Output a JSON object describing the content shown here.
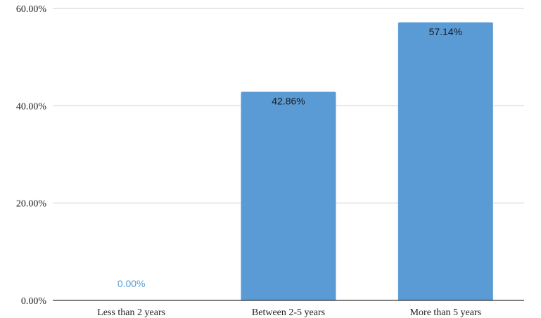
{
  "chart_data": {
    "type": "bar",
    "title": "",
    "xlabel": "",
    "ylabel": "",
    "categories": [
      "Less than 2 years",
      "Between 2-5 years",
      "More than 5 years"
    ],
    "values": [
      0.0,
      42.86,
      57.14
    ],
    "data_labels": [
      "0.00%",
      "42.86%",
      "57.14%"
    ],
    "ylim": [
      0,
      60
    ],
    "yticks": [
      0,
      20,
      40,
      60
    ],
    "ytick_labels": [
      "0.00%",
      "20.00%",
      "40.00%",
      "60.00%"
    ],
    "grid": true,
    "legend": "none",
    "colors": {
      "bar": "#5b9bd5",
      "label_inside": "#1a1a1a",
      "label_zero": "#5b9bd5",
      "grid": "#d0d0d0",
      "axis": "#333333"
    }
  }
}
